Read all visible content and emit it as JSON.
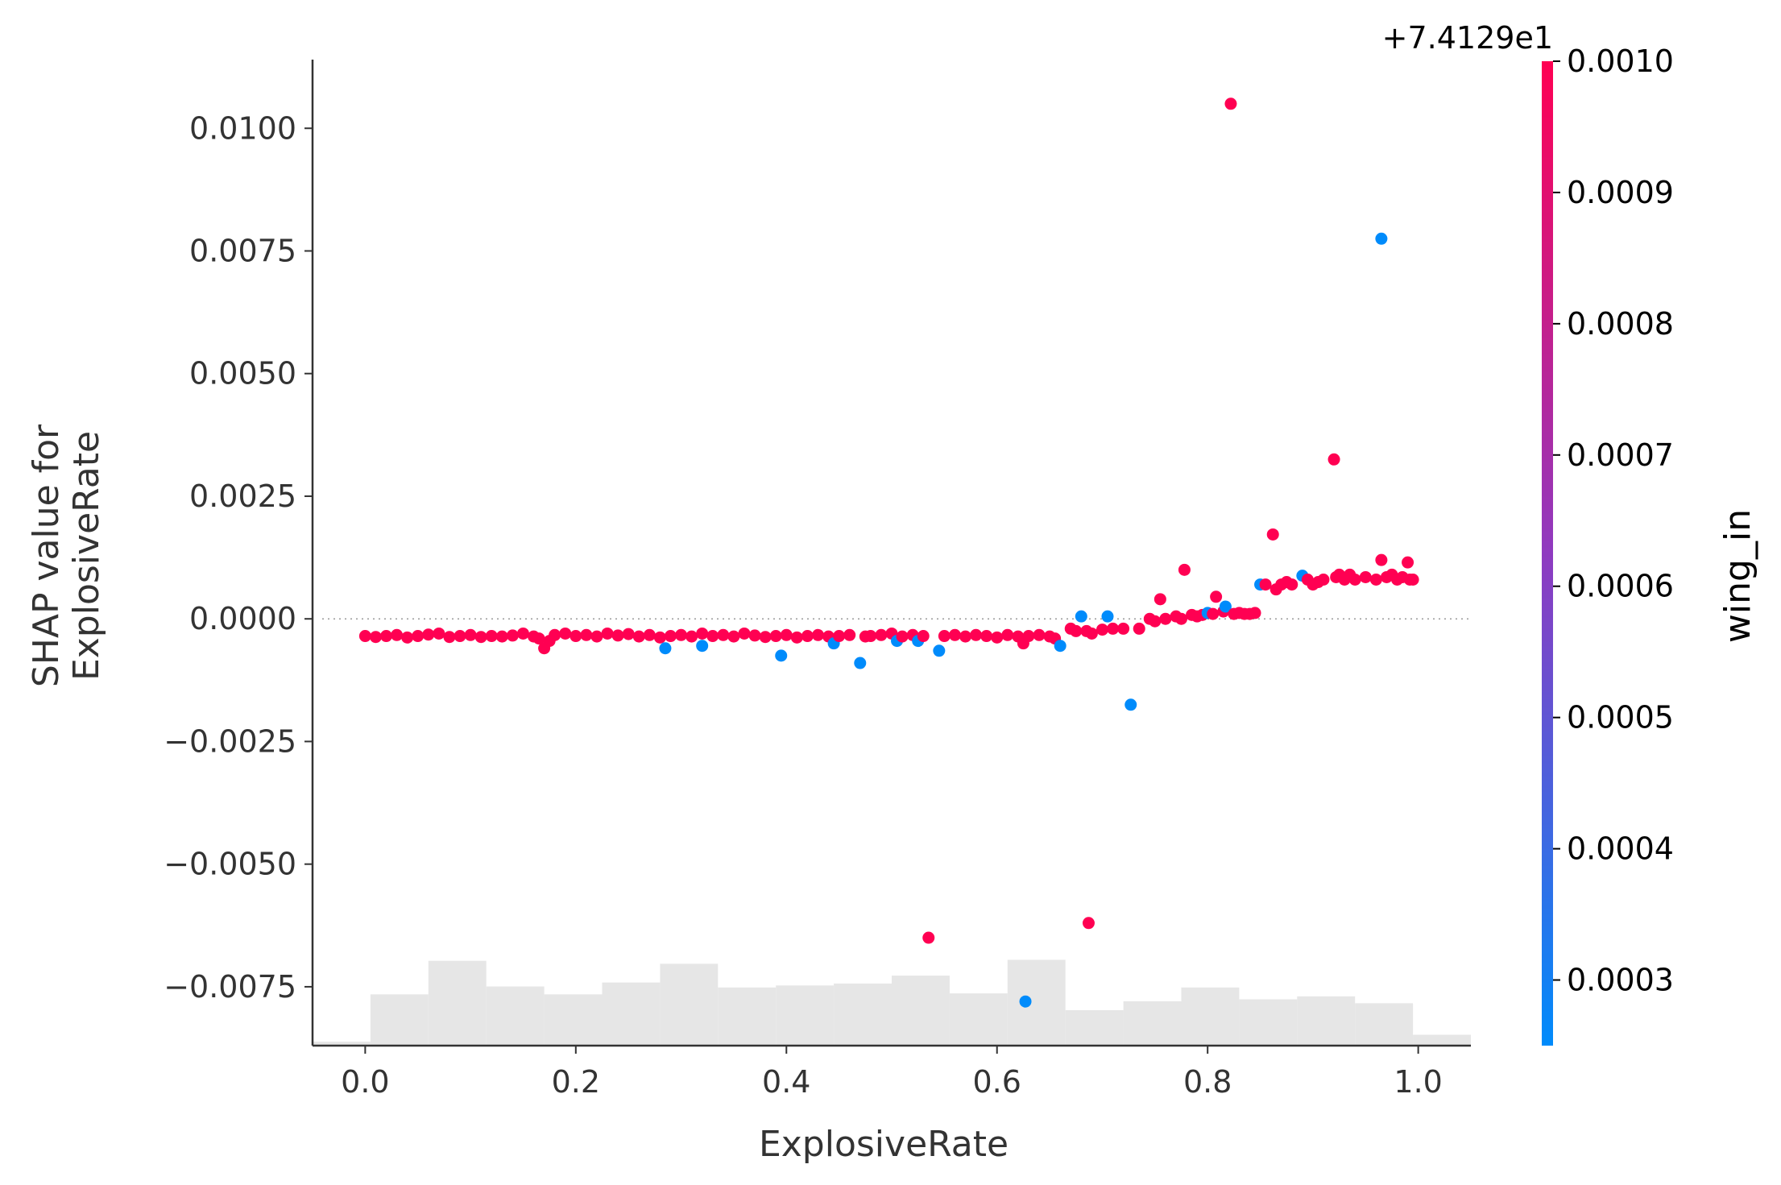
{
  "chart_data": {
    "type": "scatter",
    "xlabel": "ExplosiveRate",
    "ylabel_lines": [
      "SHAP value for",
      "ExplosiveRate"
    ],
    "xlim": [
      -0.05,
      1.05
    ],
    "ylim": [
      -0.0087,
      0.0114
    ],
    "xticks": [
      0.0,
      0.2,
      0.4,
      0.6,
      0.8,
      1.0
    ],
    "xtick_labels": [
      "0.0",
      "0.2",
      "0.4",
      "0.6",
      "0.8",
      "1.0"
    ],
    "yticks": [
      0.01,
      0.0075,
      0.005,
      0.0025,
      0.0,
      -0.0025,
      -0.005,
      -0.0075
    ],
    "ytick_labels": [
      "0.0100",
      "0.0075",
      "0.0050",
      "0.0025",
      "0.0000",
      "−0.0025",
      "−0.0050",
      "−0.0075"
    ],
    "zero_line": 0.0,
    "grid": false,
    "colors": {
      "low": "#008bfb",
      "high": "#ff0052",
      "mid": "#8f3ac0",
      "histogram": "#e6e6e6",
      "axis": "#333333"
    },
    "colorbar": {
      "label": "wing_in",
      "offset_text": "+7.4129e1",
      "range": [
        0.00025,
        0.001
      ],
      "ticks": [
        0.001,
        0.0009,
        0.0008,
        0.0007,
        0.0006,
        0.0005,
        0.0004,
        0.0003
      ],
      "tick_labels": [
        "0.0010",
        "0.0009",
        "0.0008",
        "0.0007",
        "0.0006",
        "0.0005",
        "0.0004",
        "0.0003"
      ]
    },
    "histogram": {
      "bin_edges": [
        -0.05,
        0.005,
        0.06,
        0.115,
        0.17,
        0.225,
        0.28,
        0.335,
        0.39,
        0.445,
        0.5,
        0.555,
        0.61,
        0.665,
        0.72,
        0.775,
        0.83,
        0.885,
        0.94,
        0.995,
        1.05
      ],
      "heights": [
        0.004,
        0.052,
        0.086,
        0.06,
        0.052,
        0.064,
        0.083,
        0.059,
        0.061,
        0.063,
        0.071,
        0.053,
        0.087,
        0.036,
        0.045,
        0.059,
        0.047,
        0.05,
        0.043,
        0.011
      ]
    },
    "series": [
      {
        "points": [
          [
            0.0,
            -0.00035,
            1
          ],
          [
            0.01,
            -0.00037,
            1
          ],
          [
            0.02,
            -0.00035,
            1
          ],
          [
            0.03,
            -0.00033,
            1
          ],
          [
            0.04,
            -0.00038,
            1
          ],
          [
            0.05,
            -0.00035,
            1
          ],
          [
            0.06,
            -0.00032,
            1
          ],
          [
            0.07,
            -0.0003,
            1
          ],
          [
            0.08,
            -0.00037,
            1
          ],
          [
            0.09,
            -0.00035,
            1
          ],
          [
            0.1,
            -0.00033,
            1
          ],
          [
            0.11,
            -0.00037,
            1
          ],
          [
            0.12,
            -0.00035,
            1
          ],
          [
            0.13,
            -0.00036,
            1
          ],
          [
            0.14,
            -0.00034,
            1
          ],
          [
            0.15,
            -0.0003,
            1
          ],
          [
            0.16,
            -0.00036,
            1
          ],
          [
            0.165,
            -0.0004,
            1
          ],
          [
            0.17,
            -0.0006,
            1
          ],
          [
            0.175,
            -0.00045,
            1
          ],
          [
            0.18,
            -0.00033,
            1
          ],
          [
            0.19,
            -0.0003,
            1
          ],
          [
            0.2,
            -0.00035,
            1
          ],
          [
            0.21,
            -0.00033,
            1
          ],
          [
            0.22,
            -0.00036,
            1
          ],
          [
            0.23,
            -0.0003,
            1
          ],
          [
            0.24,
            -0.00034,
            1
          ],
          [
            0.25,
            -0.00031,
            1
          ],
          [
            0.26,
            -0.00036,
            1
          ],
          [
            0.27,
            -0.00033,
            1
          ],
          [
            0.28,
            -0.00038,
            1
          ],
          [
            0.285,
            -0.0006,
            0
          ],
          [
            0.29,
            -0.00035,
            1
          ],
          [
            0.3,
            -0.00033,
            1
          ],
          [
            0.31,
            -0.00036,
            1
          ],
          [
            0.32,
            -0.0003,
            1
          ],
          [
            0.32,
            -0.00055,
            0
          ],
          [
            0.33,
            -0.00035,
            1
          ],
          [
            0.34,
            -0.00033,
            1
          ],
          [
            0.35,
            -0.00036,
            1
          ],
          [
            0.36,
            -0.0003,
            1
          ],
          [
            0.37,
            -0.00034,
            1
          ],
          [
            0.38,
            -0.00037,
            1
          ],
          [
            0.39,
            -0.00035,
            1
          ],
          [
            0.395,
            -0.00075,
            0
          ],
          [
            0.4,
            -0.00033,
            1
          ],
          [
            0.41,
            -0.00038,
            1
          ],
          [
            0.42,
            -0.00035,
            1
          ],
          [
            0.43,
            -0.00033,
            1
          ],
          [
            0.44,
            -0.00036,
            1
          ],
          [
            0.445,
            -0.0005,
            0
          ],
          [
            0.45,
            -0.00035,
            1
          ],
          [
            0.46,
            -0.00033,
            1
          ],
          [
            0.47,
            -0.0009,
            0
          ],
          [
            0.475,
            -0.00036,
            1
          ],
          [
            0.48,
            -0.00035,
            1
          ],
          [
            0.49,
            -0.00033,
            1
          ],
          [
            0.5,
            -0.0003,
            1
          ],
          [
            0.505,
            -0.00045,
            0
          ],
          [
            0.51,
            -0.00036,
            1
          ],
          [
            0.52,
            -0.00033,
            1
          ],
          [
            0.525,
            -0.00045,
            0
          ],
          [
            0.53,
            -0.00035,
            1
          ],
          [
            0.535,
            -0.0065,
            1
          ],
          [
            0.545,
            -0.00065,
            0
          ],
          [
            0.55,
            -0.00035,
            1
          ],
          [
            0.56,
            -0.00033,
            1
          ],
          [
            0.57,
            -0.00036,
            1
          ],
          [
            0.58,
            -0.00033,
            1
          ],
          [
            0.59,
            -0.00035,
            1
          ],
          [
            0.6,
            -0.00038,
            1
          ],
          [
            0.61,
            -0.00033,
            1
          ],
          [
            0.62,
            -0.00036,
            1
          ],
          [
            0.625,
            -0.0005,
            1
          ],
          [
            0.627,
            -0.0078,
            0
          ],
          [
            0.63,
            -0.00035,
            1
          ],
          [
            0.64,
            -0.00033,
            1
          ],
          [
            0.65,
            -0.00036,
            1
          ],
          [
            0.655,
            -0.0004,
            1
          ],
          [
            0.66,
            -0.00055,
            0
          ],
          [
            0.67,
            -0.0002,
            1
          ],
          [
            0.675,
            -0.00025,
            1
          ],
          [
            0.68,
            5e-05,
            0
          ],
          [
            0.685,
            -0.00025,
            1
          ],
          [
            0.687,
            -0.0062,
            1
          ],
          [
            0.69,
            -0.0003,
            1
          ],
          [
            0.7,
            -0.00022,
            1
          ],
          [
            0.705,
            5e-05,
            0
          ],
          [
            0.71,
            -0.0002,
            1
          ],
          [
            0.72,
            -0.0002,
            1
          ],
          [
            0.727,
            -0.00175,
            0
          ],
          [
            0.735,
            -0.0002,
            1
          ],
          [
            0.745,
            0.0,
            1
          ],
          [
            0.75,
            -5e-05,
            1
          ],
          [
            0.755,
            0.0004,
            1
          ],
          [
            0.76,
            0.0,
            1
          ],
          [
            0.77,
            5e-05,
            1
          ],
          [
            0.775,
            0.0,
            1
          ],
          [
            0.778,
            0.001,
            1
          ],
          [
            0.785,
            8e-05,
            1
          ],
          [
            0.79,
            5e-05,
            1
          ],
          [
            0.795,
            8e-05,
            1
          ],
          [
            0.8,
            0.00012,
            0
          ],
          [
            0.805,
            0.0001,
            1
          ],
          [
            0.808,
            0.00045,
            1
          ],
          [
            0.815,
            0.00015,
            1
          ],
          [
            0.817,
            0.00025,
            0
          ],
          [
            0.822,
            0.0105,
            1
          ],
          [
            0.825,
            0.0001,
            1
          ],
          [
            0.83,
            0.00012,
            1
          ],
          [
            0.835,
            0.0001,
            1
          ],
          [
            0.84,
            0.0001,
            1
          ],
          [
            0.845,
            0.00012,
            1
          ],
          [
            0.85,
            0.0007,
            0
          ],
          [
            0.855,
            0.0007,
            1
          ],
          [
            0.862,
            0.00172,
            1
          ],
          [
            0.865,
            0.0006,
            1
          ],
          [
            0.87,
            0.0007,
            1
          ],
          [
            0.875,
            0.00075,
            1
          ],
          [
            0.88,
            0.0007,
            1
          ],
          [
            0.89,
            0.00088,
            0
          ],
          [
            0.895,
            0.0008,
            1
          ],
          [
            0.9,
            0.0007,
            1
          ],
          [
            0.905,
            0.00075,
            1
          ],
          [
            0.91,
            0.0008,
            1
          ],
          [
            0.92,
            0.00325,
            1
          ],
          [
            0.922,
            0.00085,
            1
          ],
          [
            0.925,
            0.0009,
            1
          ],
          [
            0.93,
            0.0008,
            1
          ],
          [
            0.935,
            0.0009,
            1
          ],
          [
            0.94,
            0.0008,
            1
          ],
          [
            0.95,
            0.00085,
            1
          ],
          [
            0.96,
            0.0008,
            1
          ],
          [
            0.965,
            0.00775,
            0
          ],
          [
            0.965,
            0.0012,
            1
          ],
          [
            0.97,
            0.00085,
            1
          ],
          [
            0.975,
            0.0009,
            1
          ],
          [
            0.98,
            0.0008,
            1
          ],
          [
            0.985,
            0.00085,
            1
          ],
          [
            0.99,
            0.00115,
            1
          ],
          [
            0.992,
            0.0008,
            1
          ],
          [
            0.995,
            0.0008,
            1
          ]
        ]
      }
    ]
  }
}
